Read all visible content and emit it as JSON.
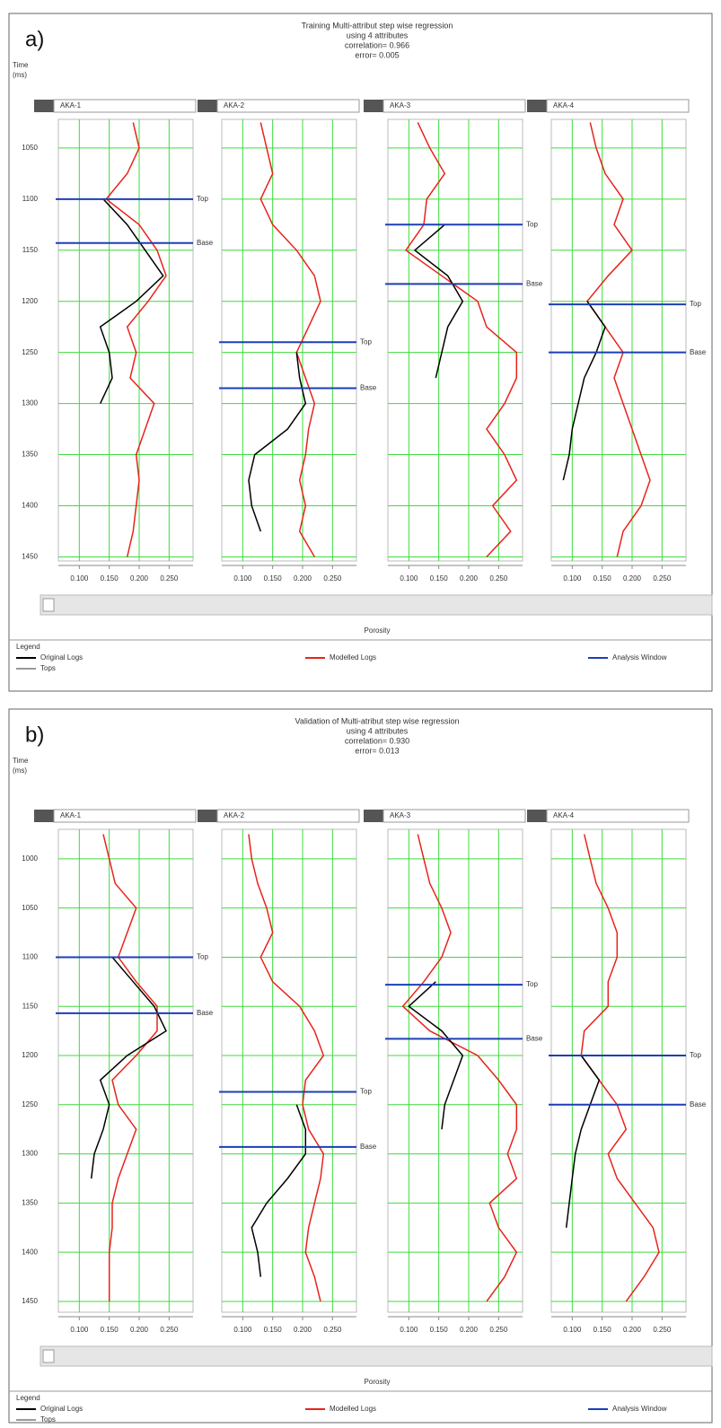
{
  "chart_data": [
    {
      "type": "well-log",
      "panel_label": "a)",
      "title": [
        "Training Multi-attribut step wise regression",
        "using 4 attributes",
        "correlation= 0.966",
        "error= 0.005"
      ],
      "ylabel": [
        "Time",
        "(ms)"
      ],
      "xlabel": "Porosity",
      "ylim": [
        1022,
        1454
      ],
      "yticks": [
        1050,
        1100,
        1150,
        1200,
        1250,
        1300,
        1350,
        1400,
        1450
      ],
      "xlim": [
        0.065,
        0.29
      ],
      "xticks": [
        {
          "value": 0.1,
          "label": "0.100"
        },
        {
          "value": 0.15,
          "label": "0.150"
        },
        {
          "value": 0.2,
          "label": "0.200"
        },
        {
          "value": 0.25,
          "label": "0.250"
        }
      ],
      "grid": true,
      "legend_title": "Legend",
      "series": [
        {
          "name": "Original Logs",
          "color": "#000000"
        },
        {
          "name": "Modelled Logs",
          "color": "#e8231b"
        }
      ],
      "analysis_window": {
        "name": "Analysis Window",
        "color": "#1c3fb5"
      },
      "tops_legend": {
        "name": "Tops",
        "color": "#999999"
      },
      "depths": [
        1025,
        1050,
        1075,
        1100,
        1125,
        1150,
        1175,
        1200,
        1225,
        1250,
        1275,
        1300,
        1325,
        1350,
        1375,
        1400,
        1425,
        1450
      ],
      "tracks": [
        {
          "name": "AKA-1",
          "logs": [
            [
              null,
              null,
              null,
              0.14,
              0.18,
              0.21,
              0.24,
              0.195,
              0.135,
              0.15,
              0.155,
              0.135,
              null,
              null,
              null,
              null,
              null,
              null
            ],
            [
              0.19,
              0.2,
              0.18,
              0.145,
              0.2,
              0.23,
              0.245,
              0.215,
              0.18,
              0.195,
              0.185,
              0.225,
              0.21,
              0.195,
              0.2,
              0.195,
              0.19,
              0.18
            ]
          ],
          "tops": [
            {
              "name": "Top",
              "value": 1100
            },
            {
              "name": "Base",
              "value": 1143
            }
          ]
        },
        {
          "name": "AKA-2",
          "logs": [
            [
              null,
              null,
              null,
              null,
              null,
              null,
              null,
              null,
              null,
              0.19,
              0.195,
              0.205,
              0.175,
              0.12,
              0.11,
              0.115,
              0.13,
              null
            ],
            [
              0.13,
              0.14,
              0.15,
              0.13,
              0.15,
              0.19,
              0.22,
              0.23,
              0.21,
              0.19,
              0.205,
              0.22,
              0.21,
              0.205,
              0.195,
              0.205,
              0.195,
              0.22
            ]
          ],
          "tops": [
            {
              "name": "Top",
              "value": 1240
            },
            {
              "name": "Base",
              "value": 1285
            }
          ]
        },
        {
          "name": "AKA-3",
          "logs": [
            [
              null,
              null,
              null,
              null,
              0.16,
              0.11,
              0.165,
              0.19,
              0.165,
              0.155,
              0.145,
              null,
              null,
              null,
              null,
              null,
              null,
              null
            ],
            [
              0.115,
              0.135,
              0.16,
              0.13,
              0.125,
              0.095,
              0.155,
              0.215,
              0.23,
              0.28,
              0.28,
              0.26,
              0.23,
              0.26,
              0.28,
              0.24,
              0.27,
              0.23
            ]
          ],
          "tops": [
            {
              "name": "Top",
              "value": 1125
            },
            {
              "name": "Base",
              "value": 1183
            }
          ]
        },
        {
          "name": "AKA-4",
          "logs": [
            [
              null,
              null,
              null,
              null,
              null,
              null,
              null,
              0.125,
              0.155,
              0.14,
              0.12,
              0.11,
              0.1,
              0.095,
              0.085,
              null,
              null,
              null
            ],
            [
              0.13,
              0.14,
              0.155,
              0.185,
              0.17,
              0.2,
              0.16,
              0.125,
              0.155,
              0.185,
              0.17,
              0.185,
              0.2,
              0.215,
              0.23,
              0.215,
              0.185,
              0.175
            ]
          ],
          "tops": [
            {
              "name": "Top",
              "value": 1203
            },
            {
              "name": "Base",
              "value": 1250
            }
          ]
        }
      ]
    },
    {
      "type": "well-log",
      "panel_label": "b)",
      "title": [
        "Validation of Multi-atribut step wise regression",
        "using 4 attributes",
        "correlation= 0.930",
        "error= 0.013"
      ],
      "ylabel": [
        "Time",
        "(ms)"
      ],
      "xlabel": "Porosity",
      "ylim": [
        970,
        1461
      ],
      "yticks": [
        1000,
        1050,
        1100,
        1150,
        1200,
        1250,
        1300,
        1350,
        1400,
        1450
      ],
      "xlim": [
        0.065,
        0.29
      ],
      "xticks": [
        {
          "value": 0.1,
          "label": "0.100"
        },
        {
          "value": 0.15,
          "label": "0.150"
        },
        {
          "value": 0.2,
          "label": "0.200"
        },
        {
          "value": 0.25,
          "label": "0.250"
        }
      ],
      "grid": true,
      "legend_title": "Legend",
      "series": [
        {
          "name": "Original Logs",
          "color": "#000000"
        },
        {
          "name": "Modelled Logs",
          "color": "#e8231b"
        }
      ],
      "analysis_window": {
        "name": "Analysis Window",
        "color": "#1c3fb5"
      },
      "tops_legend": {
        "name": "Tops",
        "color": "#999999"
      },
      "depths": [
        975,
        1000,
        1025,
        1050,
        1075,
        1100,
        1125,
        1150,
        1175,
        1200,
        1225,
        1250,
        1275,
        1300,
        1325,
        1350,
        1375,
        1400,
        1425,
        1450
      ],
      "tracks": [
        {
          "name": "AKA-1",
          "logs": [
            [
              null,
              null,
              null,
              null,
              null,
              0.155,
              0.19,
              0.225,
              0.245,
              0.18,
              0.135,
              0.15,
              0.14,
              0.125,
              0.12,
              null,
              null,
              null,
              null,
              null
            ],
            [
              0.14,
              0.15,
              0.16,
              0.195,
              0.18,
              0.165,
              0.195,
              0.23,
              0.23,
              0.195,
              0.155,
              0.165,
              0.195,
              0.18,
              0.165,
              0.155,
              0.155,
              0.15,
              0.15,
              0.15
            ]
          ],
          "tops": [
            {
              "name": "Top",
              "value": 1100
            },
            {
              "name": "Base",
              "value": 1157
            }
          ]
        },
        {
          "name": "AKA-2",
          "logs": [
            [
              null,
              null,
              null,
              null,
              null,
              null,
              null,
              null,
              null,
              null,
              null,
              0.19,
              0.205,
              0.205,
              0.175,
              0.14,
              0.115,
              0.125,
              0.13,
              null
            ],
            [
              0.11,
              0.115,
              0.125,
              0.14,
              0.15,
              0.13,
              0.15,
              0.195,
              0.22,
              0.235,
              0.205,
              0.2,
              0.21,
              0.235,
              0.23,
              0.22,
              0.21,
              0.205,
              0.22,
              0.23
            ]
          ],
          "tops": [
            {
              "name": "Top",
              "value": 1237
            },
            {
              "name": "Base",
              "value": 1293
            }
          ]
        },
        {
          "name": "AKA-3",
          "logs": [
            [
              null,
              null,
              null,
              null,
              null,
              null,
              0.145,
              0.1,
              0.155,
              0.19,
              0.175,
              0.16,
              0.155,
              null,
              null,
              null,
              null,
              null,
              null,
              null
            ],
            [
              0.115,
              0.125,
              0.135,
              0.155,
              0.17,
              0.155,
              0.125,
              0.09,
              0.135,
              0.215,
              0.25,
              0.28,
              0.28,
              0.265,
              0.28,
              0.235,
              0.25,
              0.28,
              0.26,
              0.23
            ]
          ],
          "tops": [
            {
              "name": "Top",
              "value": 1128
            },
            {
              "name": "Base",
              "value": 1183
            }
          ]
        },
        {
          "name": "AKA-4",
          "logs": [
            [
              null,
              null,
              null,
              null,
              null,
              null,
              null,
              null,
              null,
              0.115,
              0.145,
              0.13,
              0.115,
              0.105,
              0.1,
              0.095,
              0.09,
              null,
              null,
              null
            ],
            [
              0.12,
              0.13,
              0.14,
              0.16,
              0.175,
              0.175,
              0.16,
              0.16,
              0.12,
              0.115,
              0.145,
              0.175,
              0.19,
              0.16,
              0.175,
              0.205,
              0.235,
              0.245,
              0.22,
              0.19
            ]
          ],
          "tops": [
            {
              "name": "Top",
              "value": 1200
            },
            {
              "name": "Base",
              "value": 1250
            }
          ]
        }
      ]
    }
  ]
}
